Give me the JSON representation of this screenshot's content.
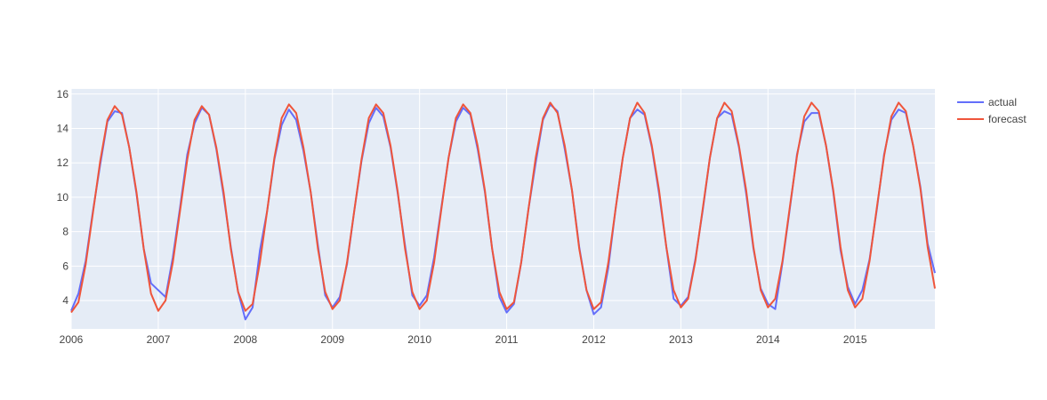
{
  "chart_data": {
    "type": "line",
    "x_start": "2006-01",
    "x_frequency": "monthly",
    "x_ticks": [
      "2006",
      "2007",
      "2008",
      "2009",
      "2010",
      "2011",
      "2012",
      "2013",
      "2014",
      "2015"
    ],
    "y_ticks": [
      "4",
      "6",
      "8",
      "10",
      "12",
      "14",
      "16"
    ],
    "ylim": [
      2.35,
      16.3
    ],
    "xlim": [
      "2006-01",
      "2015-12"
    ],
    "grid": true,
    "legend_position": "top-right",
    "plot_bg": "#e5ecf6",
    "series": [
      {
        "name": "actual",
        "color": "#636efa",
        "values": [
          3.4,
          4.4,
          6.3,
          9.2,
          11.9,
          14.4,
          15.0,
          14.9,
          12.9,
          10.2,
          7.0,
          5.0,
          4.6,
          4.2,
          6.5,
          9.4,
          12.5,
          14.3,
          15.2,
          14.8,
          12.8,
          10.1,
          7.1,
          4.5,
          2.9,
          3.6,
          6.9,
          9.2,
          12.2,
          14.2,
          15.1,
          14.5,
          12.7,
          10.3,
          7.2,
          4.3,
          3.6,
          4.2,
          6.1,
          9.2,
          12.1,
          14.3,
          15.2,
          14.7,
          12.9,
          10.2,
          7.2,
          4.3,
          3.7,
          4.3,
          6.5,
          9.4,
          12.3,
          14.4,
          15.2,
          14.8,
          12.8,
          10.3,
          7.0,
          4.2,
          3.3,
          3.8,
          6.2,
          9.3,
          12.0,
          14.5,
          15.4,
          15.0,
          12.8,
          10.4,
          7.1,
          4.6,
          3.2,
          3.6,
          5.9,
          9.3,
          12.3,
          14.6,
          15.1,
          14.8,
          12.9,
          10.2,
          7.1,
          4.1,
          3.7,
          4.2,
          6.4,
          9.2,
          12.3,
          14.6,
          15.0,
          14.8,
          12.9,
          10.2,
          7.0,
          4.7,
          3.8,
          3.5,
          6.2,
          9.3,
          12.5,
          14.4,
          14.9,
          14.9,
          13.0,
          10.3,
          6.9,
          4.8,
          3.8,
          4.6,
          6.4,
          9.3,
          12.5,
          14.5,
          15.1,
          14.9,
          13.0,
          10.6,
          7.3,
          5.6
        ]
      },
      {
        "name": "forecast",
        "color": "#ef553b",
        "values": [
          3.3,
          3.9,
          6.1,
          9.1,
          12.1,
          14.5,
          15.3,
          14.8,
          12.9,
          10.3,
          7.0,
          4.4,
          3.4,
          4.0,
          6.2,
          9.2,
          12.2,
          14.5,
          15.3,
          14.8,
          12.9,
          10.3,
          7.0,
          4.5,
          3.4,
          3.8,
          6.2,
          9.2,
          12.3,
          14.6,
          15.4,
          14.9,
          12.9,
          10.3,
          7.0,
          4.5,
          3.5,
          4.0,
          6.2,
          9.2,
          12.2,
          14.6,
          15.4,
          14.9,
          13.0,
          10.3,
          7.0,
          4.5,
          3.5,
          4.0,
          6.2,
          9.3,
          12.3,
          14.6,
          15.4,
          14.9,
          13.0,
          10.4,
          7.0,
          4.5,
          3.5,
          3.9,
          6.2,
          9.3,
          12.3,
          14.6,
          15.5,
          14.9,
          13.0,
          10.4,
          7.0,
          4.6,
          3.5,
          3.9,
          6.2,
          9.3,
          12.3,
          14.6,
          15.5,
          14.9,
          13.0,
          10.4,
          7.1,
          4.6,
          3.6,
          4.1,
          6.3,
          9.3,
          12.3,
          14.6,
          15.5,
          15.0,
          13.0,
          10.4,
          7.1,
          4.6,
          3.6,
          4.1,
          6.3,
          9.4,
          12.4,
          14.7,
          15.5,
          15.0,
          13.0,
          10.4,
          7.1,
          4.6,
          3.6,
          4.1,
          6.3,
          9.4,
          12.4,
          14.7,
          15.5,
          15.0,
          13.0,
          10.5,
          7.1,
          4.7
        ]
      }
    ]
  }
}
